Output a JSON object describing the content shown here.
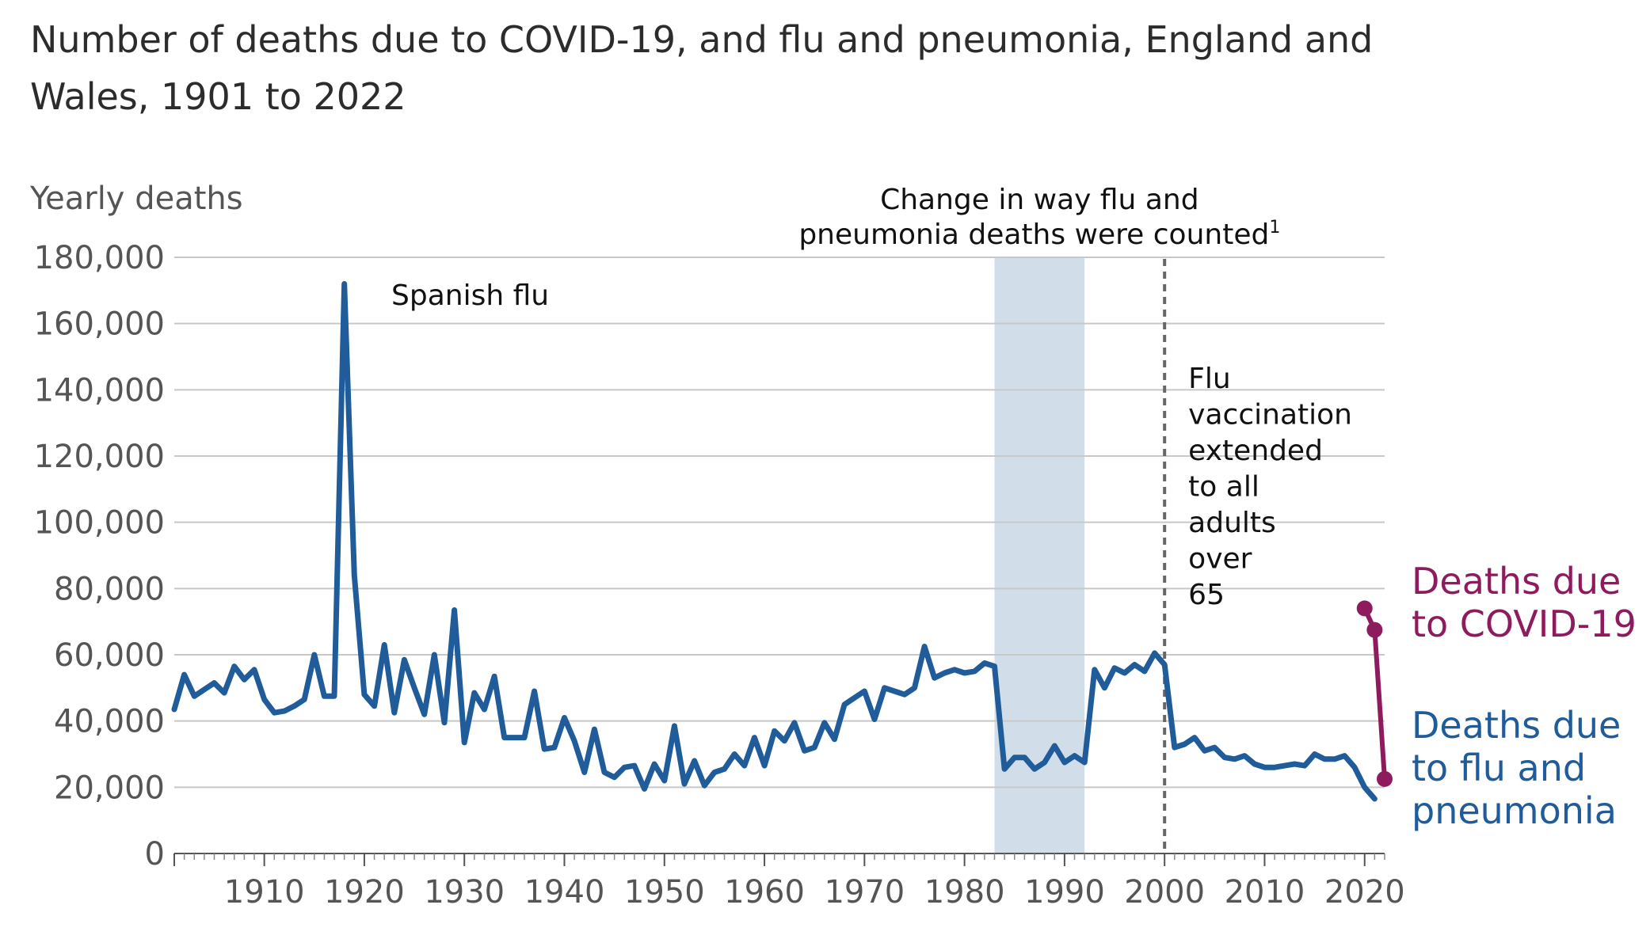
{
  "title": "Number of deaths due to COVID-19, and flu and pneumonia, England and Wales, 1901 to 2022",
  "colors": {
    "flu": "#1f5c99",
    "covid": "#8e1b5e",
    "band": "#d1dde9",
    "grid": "#c8c8c8"
  },
  "chart_data": {
    "type": "line",
    "title": "Number of deaths due to COVID-19, and flu and pneumonia, England and Wales, 1901 to 2022",
    "ylabel": "Yearly deaths",
    "xlabel": "",
    "xlim": [
      1901,
      2022
    ],
    "ylim": [
      0,
      180000
    ],
    "yticks": [
      "0",
      "20,000",
      "40,000",
      "60,000",
      "80,000",
      "100,000",
      "120,000",
      "140,000",
      "160,000",
      "180,000"
    ],
    "xticks": [
      "1910",
      "1920",
      "1930",
      "1940",
      "1950",
      "1960",
      "1970",
      "1980",
      "1990",
      "2000",
      "2010",
      "2020"
    ],
    "grid": true,
    "series": [
      {
        "name": "Deaths due to flu and pneumonia",
        "label_lines": [
          "Deaths due",
          "to flu and",
          "pneumonia"
        ],
        "x": [
          1901,
          1902,
          1903,
          1904,
          1905,
          1906,
          1907,
          1908,
          1909,
          1910,
          1911,
          1912,
          1913,
          1914,
          1915,
          1916,
          1917,
          1918,
          1919,
          1920,
          1921,
          1922,
          1923,
          1924,
          1925,
          1926,
          1927,
          1928,
          1929,
          1930,
          1931,
          1932,
          1933,
          1934,
          1935,
          1936,
          1937,
          1938,
          1939,
          1940,
          1941,
          1942,
          1943,
          1944,
          1945,
          1946,
          1947,
          1948,
          1949,
          1950,
          1951,
          1952,
          1953,
          1954,
          1955,
          1956,
          1957,
          1958,
          1959,
          1960,
          1961,
          1962,
          1963,
          1964,
          1965,
          1966,
          1967,
          1968,
          1969,
          1970,
          1971,
          1972,
          1973,
          1974,
          1975,
          1976,
          1977,
          1978,
          1979,
          1980,
          1981,
          1982,
          1983,
          1984,
          1985,
          1986,
          1987,
          1988,
          1989,
          1990,
          1991,
          1992,
          1993,
          1994,
          1995,
          1996,
          1997,
          1998,
          1999,
          2000,
          2001,
          2002,
          2003,
          2004,
          2005,
          2006,
          2007,
          2008,
          2009,
          2010,
          2011,
          2012,
          2013,
          2014,
          2015,
          2016,
          2017,
          2018,
          2019,
          2020,
          2021
        ],
        "values": [
          43500,
          54000,
          47500,
          49500,
          51500,
          48500,
          56500,
          52500,
          55500,
          46500,
          42500,
          43000,
          44500,
          46500,
          60000,
          47500,
          47500,
          172000,
          84000,
          48000,
          44500,
          63000,
          42500,
          58500,
          50000,
          42000,
          60000,
          39500,
          73500,
          33500,
          48500,
          43500,
          53500,
          35000,
          35000,
          35000,
          49000,
          31500,
          32000,
          41000,
          34000,
          24500,
          37500,
          24500,
          23000,
          26000,
          26500,
          19500,
          27000,
          22000,
          38500,
          21000,
          28000,
          20500,
          24500,
          25500,
          30000,
          26500,
          35000,
          26500,
          37000,
          34000,
          39500,
          31000,
          32000,
          39500,
          34500,
          45000,
          47000,
          49000,
          40500,
          50000,
          49000,
          48000,
          50000,
          62500,
          53000,
          54500,
          55500,
          54500,
          55000,
          57500,
          56500,
          25500,
          29000,
          29000,
          25500,
          27500,
          32500,
          27500,
          29500,
          27500,
          55500,
          50000,
          56000,
          54500,
          57000,
          55000,
          60500,
          57000,
          32000,
          33000,
          35000,
          31000,
          32000,
          29000,
          28500,
          29500,
          27000,
          26000,
          26000,
          26500,
          27000,
          26500,
          30000,
          28500,
          28500,
          29500,
          26000,
          20000,
          16500
        ]
      },
      {
        "name": "Deaths due to COVID-19",
        "label_lines": [
          "Deaths due",
          "to COVID-19"
        ],
        "x": [
          2020,
          2021,
          2022
        ],
        "values": [
          74000,
          67500,
          22500
        ]
      }
    ],
    "annotations": {
      "spanish_flu": "Spanish flu",
      "band_label_lines": [
        "Change in way flu and",
        "pneumonia deaths were counted"
      ],
      "band_footnote": "1",
      "band_range": [
        1983,
        1992
      ],
      "vaccination_year": 2000,
      "vaccination_lines": [
        "Flu",
        "vaccination",
        "extended",
        "to all",
        "adults",
        "over",
        "65"
      ]
    }
  }
}
